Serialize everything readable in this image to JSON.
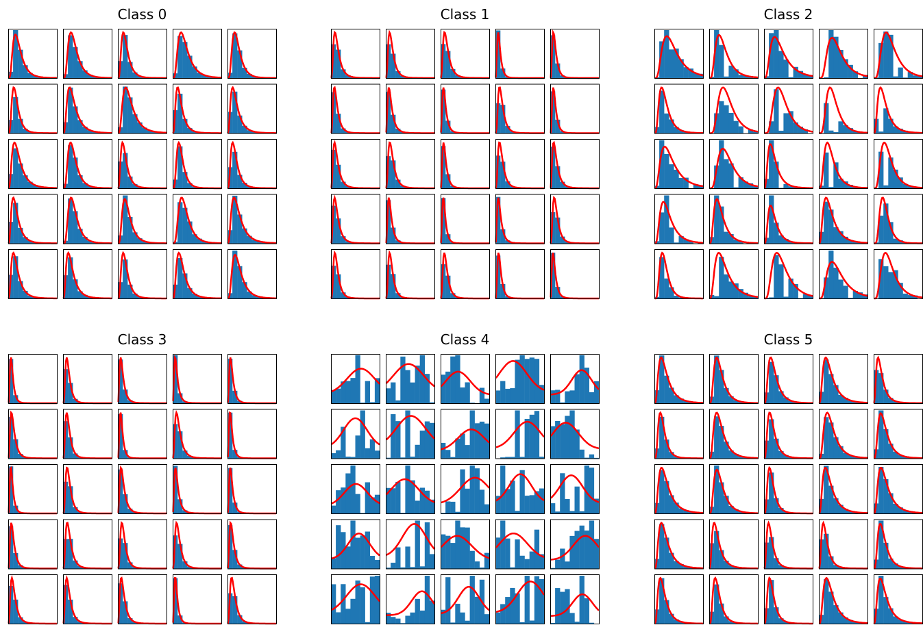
{
  "figure": {
    "bar_color": "#1f77b4",
    "curve_color": "#ff0000",
    "frame_color": "#000000",
    "background": "#ffffff"
  },
  "chart_data": {
    "type": "histogram-grid",
    "note_axes": "no tick labels or axis labels shown",
    "grid": false,
    "groups": [
      {
        "title": "Class 0",
        "shape": "right-skewed",
        "rows": 5,
        "cols": 5
      },
      {
        "title": "Class 1",
        "shape": "strongly-right-skewed",
        "rows": 5,
        "cols": 5
      },
      {
        "title": "Class 2",
        "shape": "noisy-right-skewed",
        "rows": 5,
        "cols": 5
      },
      {
        "title": "Class 3",
        "shape": "strongly-right-skewed",
        "rows": 5,
        "cols": 5
      },
      {
        "title": "Class 4",
        "shape": "noisy-uniform",
        "rows": 5,
        "cols": 5
      },
      {
        "title": "Class 5",
        "shape": "right-skewed",
        "rows": 5,
        "cols": 5
      }
    ]
  }
}
